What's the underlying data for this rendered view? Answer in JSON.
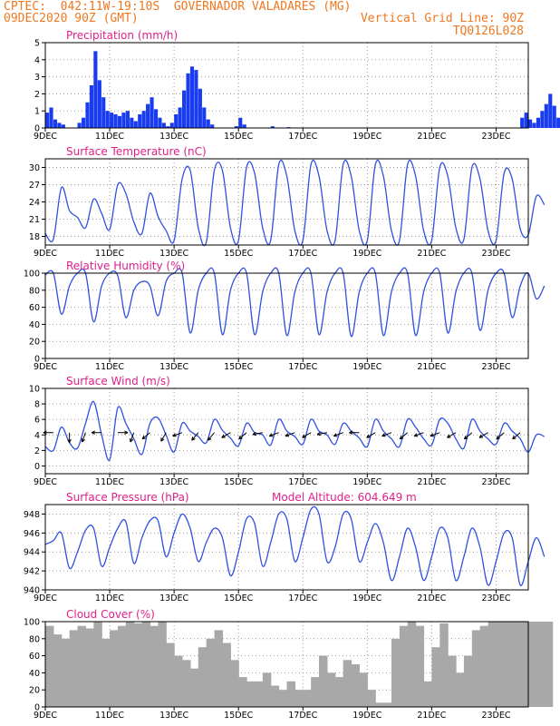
{
  "header": {
    "line1_left": "CPTEC:  042:11W-19:10S  GOVERNADOR VALADARES (MG)",
    "line2_left": "09DEC2020 90Z (GMT)",
    "line2_right": "Vertical Grid Line: 90Z",
    "line3_right": "TQ0126L028"
  },
  "colors": {
    "header": "#f07820",
    "title": "#e0208a",
    "line": "#3050e0",
    "bar": "#1a3cf0",
    "cloud": "#a8a8a8",
    "wind_arrow": "#000000"
  },
  "x_axis": {
    "day_start": 9,
    "day_end": 24,
    "ticks": [
      "9DEC",
      "11DEC",
      "13DEC",
      "15DEC",
      "17DEC",
      "19DEC",
      "21DEC",
      "23DEC"
    ],
    "tick_days": [
      9,
      11,
      13,
      15,
      17,
      19,
      21,
      23
    ]
  },
  "chart_data": [
    {
      "id": "precip",
      "type": "bar",
      "title": "Precipitation (mm/h)",
      "ylim": [
        0,
        5
      ],
      "yticks": [
        0,
        1,
        2,
        3,
        4,
        5
      ],
      "grid": true,
      "x_unit": "day",
      "x_step": 0.125,
      "x0": 9.0,
      "values": [
        0.9,
        1.2,
        0.5,
        0.3,
        0.2,
        0,
        0,
        0,
        0.3,
        0.6,
        1.5,
        2.5,
        4.5,
        2.8,
        1.8,
        1.0,
        0.9,
        0.8,
        0.7,
        0.9,
        1.0,
        0.6,
        0.4,
        0.8,
        1.0,
        1.4,
        1.8,
        1.1,
        0.6,
        0.3,
        0.1,
        0.3,
        0.8,
        1.2,
        2.2,
        3.2,
        3.6,
        3.4,
        2.3,
        1.2,
        0.5,
        0.2,
        0,
        0,
        0,
        0,
        0,
        0.1,
        0.6,
        0.2,
        0,
        0,
        0,
        0,
        0,
        0,
        0.1,
        0,
        0,
        0,
        0.05,
        0,
        0,
        0,
        0,
        0,
        0,
        0,
        0,
        0,
        0,
        0,
        0,
        0,
        0,
        0,
        0,
        0,
        0,
        0,
        0,
        0,
        0,
        0,
        0,
        0,
        0,
        0,
        0,
        0,
        0,
        0,
        0,
        0,
        0,
        0,
        0,
        0,
        0,
        0,
        0,
        0,
        0,
        0,
        0,
        0,
        0,
        0,
        0,
        0,
        0,
        0,
        0,
        0,
        0,
        0,
        0,
        0,
        0.6,
        0.9,
        0.5,
        0.3,
        0.6,
        1.0,
        1.4,
        2.0,
        1.3,
        0.6
      ]
    },
    {
      "id": "temp",
      "type": "line",
      "title": "Surface Temperature (nC)",
      "ylim": [
        16.5,
        31.5
      ],
      "yticks": [
        18,
        21,
        24,
        27,
        30
      ],
      "grid": true,
      "x_unit": "day",
      "x_step": 0.25,
      "x0": 9.0,
      "values": [
        18.5,
        17.5,
        26.5,
        22.5,
        21.3,
        19.5,
        24.5,
        22.0,
        19.2,
        27.0,
        25.5,
        20.5,
        18.5,
        25.5,
        21.5,
        19.0,
        17.3,
        28.0,
        29.5,
        19.5,
        17.0,
        29.5,
        29.5,
        19.5,
        17.3,
        30.0,
        29.0,
        19.5,
        17.3,
        30.5,
        28.5,
        19.0,
        17.3,
        30.5,
        28.5,
        19.0,
        17.3,
        30.5,
        28.5,
        19.0,
        17.3,
        30.5,
        28.5,
        19.0,
        17.3,
        30.5,
        28.5,
        19.0,
        17.3,
        30.0,
        28.5,
        19.5,
        17.5,
        30.0,
        28.0,
        19.0,
        17.3,
        29.0,
        28.0,
        19.3,
        18.3,
        25.0,
        23.5
      ]
    },
    {
      "id": "rh",
      "type": "line",
      "title": "Relative Humidity (%)",
      "ylim": [
        0,
        100
      ],
      "yticks": [
        0,
        20,
        40,
        60,
        80,
        100
      ],
      "grid": true,
      "x_unit": "day",
      "x_step": 0.25,
      "x0": 9.0,
      "values": [
        98,
        100,
        52,
        85,
        100,
        100,
        43,
        85,
        100,
        97,
        48,
        80,
        90,
        85,
        50,
        90,
        100,
        100,
        30,
        80,
        100,
        100,
        28,
        80,
        100,
        100,
        28,
        78,
        100,
        100,
        27,
        78,
        100,
        100,
        28,
        78,
        100,
        100,
        26,
        78,
        100,
        100,
        27,
        78,
        100,
        100,
        27,
        78,
        100,
        100,
        30,
        78,
        100,
        100,
        33,
        80,
        100,
        100,
        48,
        85,
        100,
        70,
        85
      ]
    },
    {
      "id": "wind",
      "type": "line",
      "title": "Surface Wind (m/s)",
      "ylim": [
        -1,
        10
      ],
      "yticks": [
        0,
        2,
        4,
        6,
        8,
        10
      ],
      "grid": true,
      "x_unit": "day",
      "x_step": 0.25,
      "x0": 9.0,
      "values": [
        2.5,
        2.0,
        5.0,
        3.0,
        2.3,
        5.5,
        8.3,
        4.0,
        0.8,
        7.5,
        5.5,
        3.5,
        1.5,
        5.5,
        6.2,
        4.0,
        1.8,
        5.5,
        4.5,
        3.8,
        3.0,
        6.0,
        4.6,
        3.6,
        2.6,
        5.5,
        4.3,
        4.0,
        2.7,
        6.0,
        4.5,
        3.8,
        2.8,
        6.0,
        4.5,
        4.0,
        2.8,
        5.5,
        4.5,
        3.6,
        2.5,
        6.0,
        4.5,
        3.5,
        2.5,
        6.0,
        5.0,
        3.5,
        2.7,
        6.0,
        5.5,
        3.5,
        2.3,
        6.0,
        4.5,
        3.5,
        2.8,
        5.5,
        4.5,
        3.5,
        1.8,
        4.0,
        3.8
      ],
      "arrows_step": 0.5,
      "arrows_deg": [
        270,
        180,
        200,
        270,
        90,
        200,
        230,
        210,
        250,
        220,
        220,
        240,
        230,
        260,
        250,
        250,
        240,
        260,
        250,
        270,
        240,
        250,
        230,
        250,
        250,
        240,
        230,
        240,
        230,
        230,
        270
      ]
    },
    {
      "id": "press",
      "type": "line",
      "title": "Surface Pressure (hPa)",
      "subtitle": "Model Altitude: 604.649 m",
      "ylim": [
        940,
        949
      ],
      "yticks": [
        940,
        942,
        944,
        946,
        948
      ],
      "grid": true,
      "x_unit": "day",
      "x_step": 0.25,
      "x0": 9.0,
      "values": [
        944.8,
        945.2,
        946.0,
        942.3,
        944.0,
        946.3,
        946.5,
        942.5,
        944.5,
        946.5,
        947.2,
        942.8,
        945.5,
        947.3,
        947.3,
        943.5,
        946.0,
        948.0,
        946.5,
        943.0,
        945.0,
        946.5,
        945.5,
        941.5,
        944.0,
        947.5,
        947.0,
        942.5,
        945.0,
        948.0,
        947.5,
        943.0,
        945.5,
        948.5,
        948.0,
        943.0,
        944.5,
        948.0,
        947.5,
        943.0,
        945.0,
        947.0,
        945.0,
        941.0,
        943.5,
        946.5,
        944.5,
        941.0,
        943.5,
        946.5,
        945.5,
        941.0,
        943.5,
        946.5,
        944.5,
        940.5,
        943.0,
        946.0,
        945.5,
        940.5,
        943.0,
        945.5,
        943.5
      ]
    },
    {
      "id": "cloud",
      "type": "bar",
      "title": "Cloud Cover (%)",
      "ylim": [
        0,
        100
      ],
      "yticks": [
        0,
        20,
        40,
        60,
        80,
        100
      ],
      "grid": true,
      "x_unit": "day",
      "x_step": 0.25,
      "x0": 9.0,
      "values": [
        95,
        85,
        80,
        90,
        95,
        92,
        100,
        80,
        90,
        95,
        100,
        98,
        100,
        95,
        100,
        75,
        60,
        55,
        45,
        70,
        80,
        90,
        75,
        55,
        35,
        30,
        30,
        40,
        25,
        20,
        30,
        20,
        20,
        35,
        60,
        40,
        35,
        55,
        50,
        40,
        20,
        5,
        5,
        80,
        95,
        100,
        95,
        30,
        70,
        98,
        60,
        40,
        60,
        90,
        95,
        100,
        100,
        100,
        100,
        100,
        100,
        100,
        100
      ]
    }
  ]
}
